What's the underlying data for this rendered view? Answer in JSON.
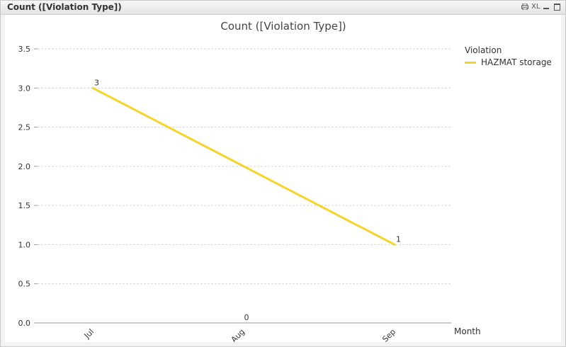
{
  "window": {
    "title": "Count ([Violation Type])",
    "icons": [
      "print-icon",
      "xl-export-icon",
      "minimize-icon",
      "maximize-icon"
    ],
    "xl_label": "XL"
  },
  "chart_data": {
    "type": "line",
    "title": "Count ([Violation Type])",
    "xlabel": "Month",
    "ylabel": "",
    "categories": [
      "Jul",
      "Aug",
      "Sep"
    ],
    "ylim": [
      0,
      3.5
    ],
    "yticks": [
      "0.0",
      "0.5",
      "1.0",
      "1.5",
      "2.0",
      "2.5",
      "3.0",
      "3.5"
    ],
    "grid": true,
    "legend": {
      "title": "Violation",
      "position": "top-right"
    },
    "series": [
      {
        "name": "HAZMAT storage",
        "color": "#f7d42a",
        "points": [
          {
            "x": "Jul",
            "y": 3
          },
          {
            "x": "Sep",
            "y": 1
          }
        ],
        "labels": [
          "3",
          "1"
        ]
      }
    ],
    "annotations": [
      {
        "x": "Aug",
        "text": "0"
      }
    ]
  }
}
